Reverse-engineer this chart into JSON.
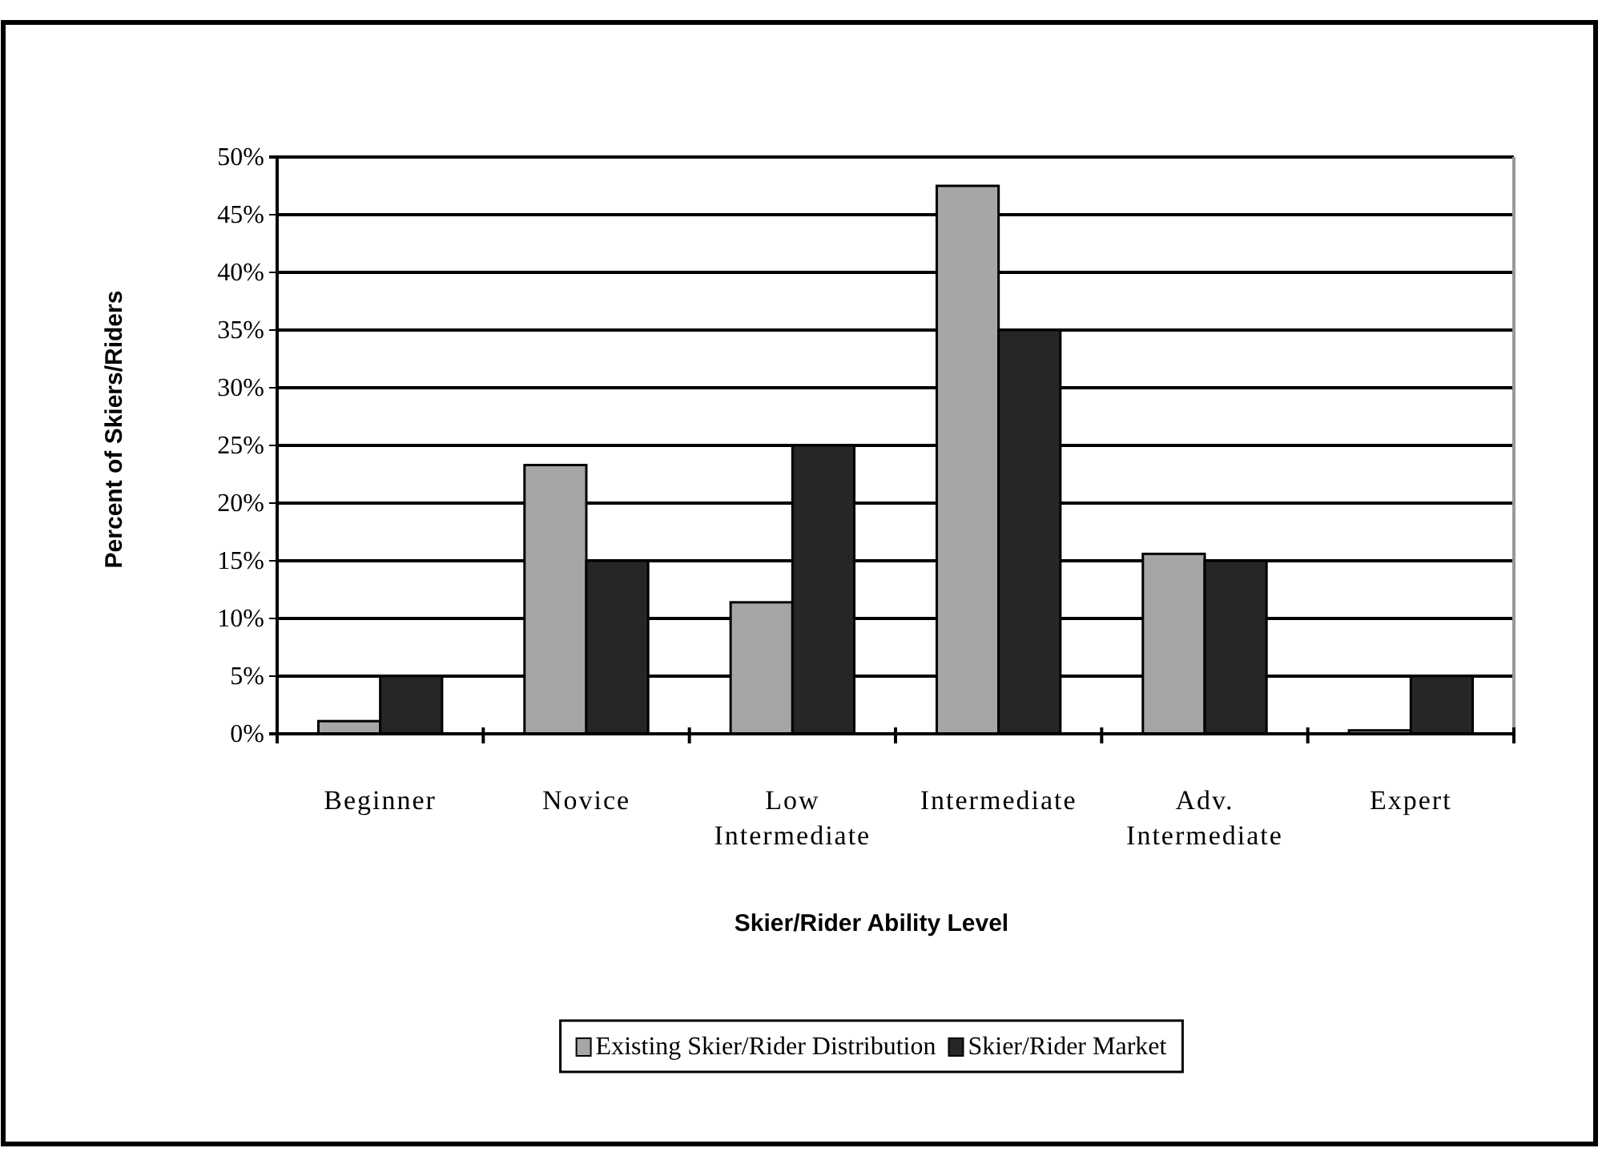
{
  "chart_data": {
    "type": "bar",
    "xlabel": "Skier/Rider Ability Level",
    "ylabel": "Percent of Skiers/Riders",
    "categories": [
      "Beginner",
      "Novice",
      "Low Intermediate",
      "Intermediate",
      "Adv. Intermediate",
      "Expert"
    ],
    "series": [
      {
        "name": "Existing Skier/Rider Distribution",
        "color": "#a6a6a6",
        "values": [
          1.1,
          23.3,
          11.4,
          47.5,
          15.6,
          0.3
        ]
      },
      {
        "name": "Skier/Rider Market",
        "color": "#262626",
        "values": [
          5,
          15,
          25,
          35,
          15,
          5
        ]
      }
    ],
    "ylim": [
      0,
      50
    ],
    "yticks": [
      {
        "value": 0,
        "label": "0%"
      },
      {
        "value": 5,
        "label": "5%"
      },
      {
        "value": 10,
        "label": "10%"
      },
      {
        "value": 15,
        "label": "15%"
      },
      {
        "value": 20,
        "label": "20%"
      },
      {
        "value": 25,
        "label": "25%"
      },
      {
        "value": 30,
        "label": "30%"
      },
      {
        "value": 35,
        "label": "35%"
      },
      {
        "value": 40,
        "label": "40%"
      },
      {
        "value": 45,
        "label": "45%"
      },
      {
        "value": 50,
        "label": "50%"
      }
    ],
    "grid": "y",
    "legend": "bottom"
  }
}
